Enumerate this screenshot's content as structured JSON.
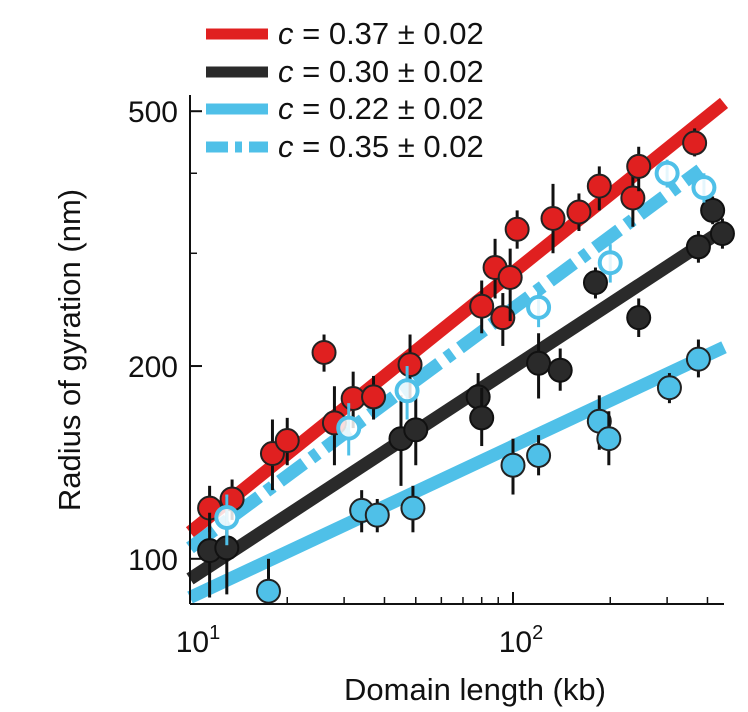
{
  "chart_data": {
    "type": "scatter",
    "title": "",
    "xlabel": "Domain length (kb)",
    "ylabel": "Radius of gyration (nm)",
    "xscale": "log",
    "yscale": "log",
    "xlim": [
      10,
      450
    ],
    "ylim": [
      85,
      530
    ],
    "xticks": [
      {
        "value": 10,
        "base": "10",
        "exp": "1"
      },
      {
        "value": 100,
        "base": "10",
        "exp": "2"
      }
    ],
    "yticks": [
      {
        "value": 100,
        "label": "100"
      },
      {
        "value": 200,
        "label": "200"
      },
      {
        "value": 500,
        "label": "500"
      }
    ],
    "grid": false,
    "legend_position": "top",
    "legend": [
      {
        "variable": "c",
        "text": " = 0.37 ± 0.02",
        "color": "#e02020",
        "style": "solid"
      },
      {
        "variable": "c",
        "text": " = 0.30 ± 0.02",
        "color": "#2a2a2a",
        "style": "solid"
      },
      {
        "variable": "c",
        "text": " = 0.22 ± 0.02",
        "color": "#4fc0e8",
        "style": "solid"
      },
      {
        "variable": "c",
        "text": " = 0.35 ± 0.02",
        "color": "#4fc0e8",
        "style": "dashdot"
      }
    ],
    "fits": [
      {
        "color": "#e02020",
        "style": "solid",
        "x": [
          10,
          450
        ],
        "y": [
          110,
          515
        ]
      },
      {
        "color": "#2a2a2a",
        "style": "solid",
        "x": [
          10,
          450
        ],
        "y": [
          93,
          327
        ]
      },
      {
        "color": "#4fc0e8",
        "style": "solid",
        "x": [
          10,
          450
        ],
        "y": [
          87,
          214
        ]
      },
      {
        "color": "#4fc0e8",
        "style": "dashdot",
        "x": [
          10,
          380
        ],
        "y": [
          104,
          405
        ]
      }
    ],
    "series": [
      {
        "color": "#e02020",
        "edge": "#222222",
        "marker": "filled",
        "points": [
          {
            "x": 11.5,
            "y": 120,
            "lo": 110,
            "hi": 130
          },
          {
            "x": 13.5,
            "y": 124,
            "lo": 115,
            "hi": 133
          },
          {
            "x": 18,
            "y": 146,
            "lo": 128,
            "hi": 165
          },
          {
            "x": 20,
            "y": 153,
            "lo": 140,
            "hi": 166
          },
          {
            "x": 26,
            "y": 210,
            "lo": 196,
            "hi": 224
          },
          {
            "x": 28,
            "y": 163,
            "lo": 140,
            "hi": 186
          },
          {
            "x": 32,
            "y": 178,
            "lo": 160,
            "hi": 196
          },
          {
            "x": 37,
            "y": 179,
            "lo": 165,
            "hi": 193
          },
          {
            "x": 48,
            "y": 201,
            "lo": 178,
            "hi": 224
          },
          {
            "x": 80,
            "y": 248,
            "lo": 225,
            "hi": 272
          },
          {
            "x": 88,
            "y": 285,
            "lo": 255,
            "hi": 316
          },
          {
            "x": 93,
            "y": 238,
            "lo": 215,
            "hi": 260
          },
          {
            "x": 98,
            "y": 275,
            "lo": 235,
            "hi": 305
          },
          {
            "x": 103,
            "y": 327,
            "lo": 305,
            "hi": 350
          },
          {
            "x": 133,
            "y": 340,
            "lo": 300,
            "hi": 385
          },
          {
            "x": 160,
            "y": 348,
            "lo": 325,
            "hi": 372
          },
          {
            "x": 185,
            "y": 382,
            "lo": 350,
            "hi": 410
          },
          {
            "x": 235,
            "y": 366,
            "lo": 330,
            "hi": 400
          },
          {
            "x": 245,
            "y": 410,
            "lo": 375,
            "hi": 440
          },
          {
            "x": 365,
            "y": 446,
            "lo": 425,
            "hi": 470
          }
        ]
      },
      {
        "color": "#2a2a2a",
        "edge": "#111111",
        "marker": "filled",
        "points": [
          {
            "x": 11.5,
            "y": 103,
            "lo": 87,
            "hi": 118
          },
          {
            "x": 13,
            "y": 104,
            "lo": 88,
            "hi": 125
          },
          {
            "x": 45,
            "y": 154,
            "lo": 130,
            "hi": 180
          },
          {
            "x": 50,
            "y": 159,
            "lo": 140,
            "hi": 180
          },
          {
            "x": 78,
            "y": 179,
            "lo": 165,
            "hi": 195
          },
          {
            "x": 80,
            "y": 166,
            "lo": 150,
            "hi": 185
          },
          {
            "x": 120,
            "y": 202,
            "lo": 178,
            "hi": 225
          },
          {
            "x": 140,
            "y": 197,
            "lo": 183,
            "hi": 213
          },
          {
            "x": 180,
            "y": 270,
            "lo": 255,
            "hi": 285
          },
          {
            "x": 245,
            "y": 238,
            "lo": 222,
            "hi": 255
          },
          {
            "x": 375,
            "y": 307,
            "lo": 290,
            "hi": 325
          },
          {
            "x": 415,
            "y": 350,
            "lo": 333,
            "hi": 368
          },
          {
            "x": 445,
            "y": 322,
            "lo": 305,
            "hi": 340
          }
        ]
      },
      {
        "color": "#4fc0e8",
        "edge": "#222222",
        "marker": "filled",
        "points": [
          {
            "x": 17.5,
            "y": 89,
            "lo": 85,
            "hi": 100
          },
          {
            "x": 34,
            "y": 119,
            "lo": 110,
            "hi": 128
          },
          {
            "x": 38,
            "y": 117,
            "lo": 110,
            "hi": 124
          },
          {
            "x": 49,
            "y": 120,
            "lo": 110,
            "hi": 130
          },
          {
            "x": 100,
            "y": 140,
            "lo": 126,
            "hi": 154
          },
          {
            "x": 120,
            "y": 145,
            "lo": 135,
            "hi": 156
          },
          {
            "x": 185,
            "y": 164,
            "lo": 148,
            "hi": 180
          },
          {
            "x": 198,
            "y": 154,
            "lo": 140,
            "hi": 170
          },
          {
            "x": 305,
            "y": 185,
            "lo": 175,
            "hi": 195
          },
          {
            "x": 375,
            "y": 205,
            "lo": 192,
            "hi": 220
          }
        ]
      },
      {
        "color": "#4fc0e8",
        "edge": "#4fc0e8",
        "marker": "open",
        "points": [
          {
            "x": 13,
            "y": 116,
            "lo": 105,
            "hi": 126
          },
          {
            "x": 31,
            "y": 160,
            "lo": 145,
            "hi": 175
          },
          {
            "x": 47,
            "y": 183,
            "lo": 165,
            "hi": 200
          },
          {
            "x": 120,
            "y": 247,
            "lo": 230,
            "hi": 265
          },
          {
            "x": 200,
            "y": 290,
            "lo": 270,
            "hi": 310
          },
          {
            "x": 300,
            "y": 400,
            "lo": 380,
            "hi": 420
          },
          {
            "x": 390,
            "y": 380,
            "lo": 360,
            "hi": 400
          }
        ]
      }
    ]
  }
}
